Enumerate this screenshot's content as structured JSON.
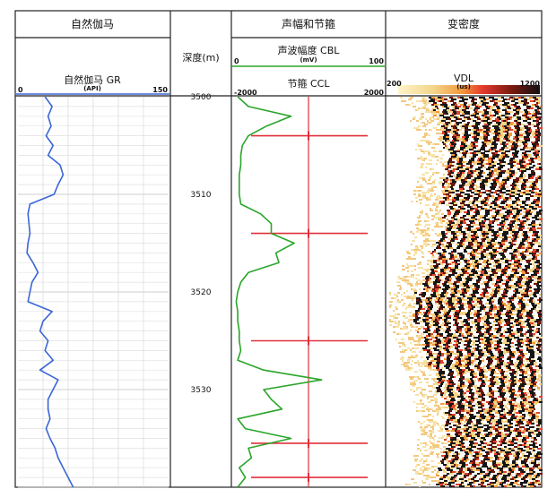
{
  "panels": {
    "gr_title": "自然伽马",
    "depth_title": "深度(m)",
    "cbl_panel_title": "声幅和节箍",
    "vdl_panel_title": "变密度"
  },
  "curves": {
    "gr": {
      "label": "自然伽马 GR",
      "unit": "(API)",
      "min": "0",
      "max": "150",
      "color": "#3a66d6"
    },
    "cbl": {
      "label": "声波幅度 CBL",
      "unit": "(mV)",
      "min": "0",
      "max": "100",
      "color": "#2aa52a"
    },
    "ccl": {
      "label": "节箍 CCL",
      "min": "-2000",
      "max": "2000",
      "color": "#e0303a"
    },
    "vdl": {
      "label": "VDL",
      "unit": "(us)",
      "min": "200",
      "max": "1200"
    }
  },
  "depth_labels": [
    "3500",
    "3510",
    "3520",
    "3530"
  ],
  "chart_data": {
    "type": "line",
    "depth_axis": {
      "label": "深度(m)",
      "range": [
        3500,
        3540
      ],
      "ticks": [
        3500,
        3510,
        3520,
        3530
      ]
    },
    "gr": {
      "xlim": [
        0,
        150
      ],
      "depth": [
        3500,
        3501,
        3502,
        3503,
        3504,
        3505,
        3506,
        3507,
        3508,
        3509,
        3510,
        3511,
        3512,
        3513,
        3514,
        3515,
        3516,
        3517,
        3518,
        3519,
        3520,
        3521,
        3522,
        3523,
        3524,
        3525,
        3526,
        3527,
        3528,
        3529,
        3530,
        3531,
        3532,
        3533,
        3534,
        3535,
        3536,
        3537,
        3538,
        3539,
        3540
      ],
      "values": [
        27,
        34,
        30,
        33,
        28,
        35,
        30,
        42,
        45,
        40,
        36,
        12,
        10,
        11,
        12,
        10,
        9,
        15,
        20,
        14,
        12,
        10,
        34,
        25,
        22,
        30,
        27,
        35,
        22,
        40,
        35,
        30,
        30,
        32,
        28,
        32,
        37,
        40,
        45,
        50,
        55
      ]
    },
    "cbl": {
      "xlim": [
        0,
        100
      ],
      "depth": [
        3500,
        3501,
        3502,
        3503,
        3504,
        3505,
        3506,
        3507,
        3508,
        3509,
        3510,
        3511,
        3512,
        3513,
        3514,
        3515,
        3516,
        3517,
        3518,
        3519,
        3520,
        3521,
        3522,
        3523,
        3524,
        3525,
        3526,
        3527,
        3528,
        3529,
        3530,
        3531,
        3532,
        3533,
        3534,
        3535,
        3536,
        3537,
        3538,
        3539,
        3540
      ],
      "values": [
        3,
        10,
        38,
        22,
        10,
        6,
        5,
        5,
        4,
        4,
        4,
        5,
        18,
        25,
        25,
        40,
        28,
        30,
        10,
        5,
        3,
        2,
        3,
        3,
        4,
        4,
        5,
        3,
        20,
        58,
        20,
        25,
        32,
        3,
        8,
        38,
        10,
        12,
        4,
        8,
        3
      ]
    },
    "ccl_collars": [
      3504,
      3514,
      3525,
      3535.5,
      3539
    ]
  }
}
